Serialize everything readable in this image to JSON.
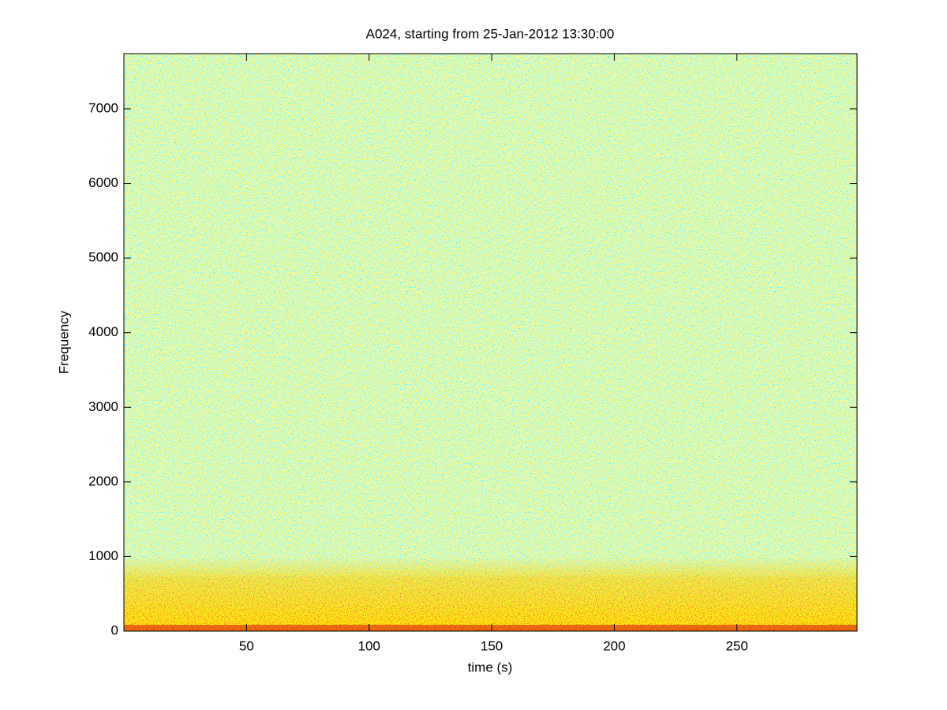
{
  "chart_data": {
    "type": "spectrogram",
    "title": "A024, starting from 25-Jan-2012 13:30:00",
    "x_label": "time (s)",
    "y_label": "Frequency",
    "xlim": [
      0,
      299
    ],
    "xticks": [
      50,
      100,
      150,
      200,
      250
    ],
    "ylim": [
      0,
      7740
    ],
    "yticks": [
      0,
      1000,
      2000,
      3000,
      4000,
      5000,
      6000,
      7000
    ]
  }
}
